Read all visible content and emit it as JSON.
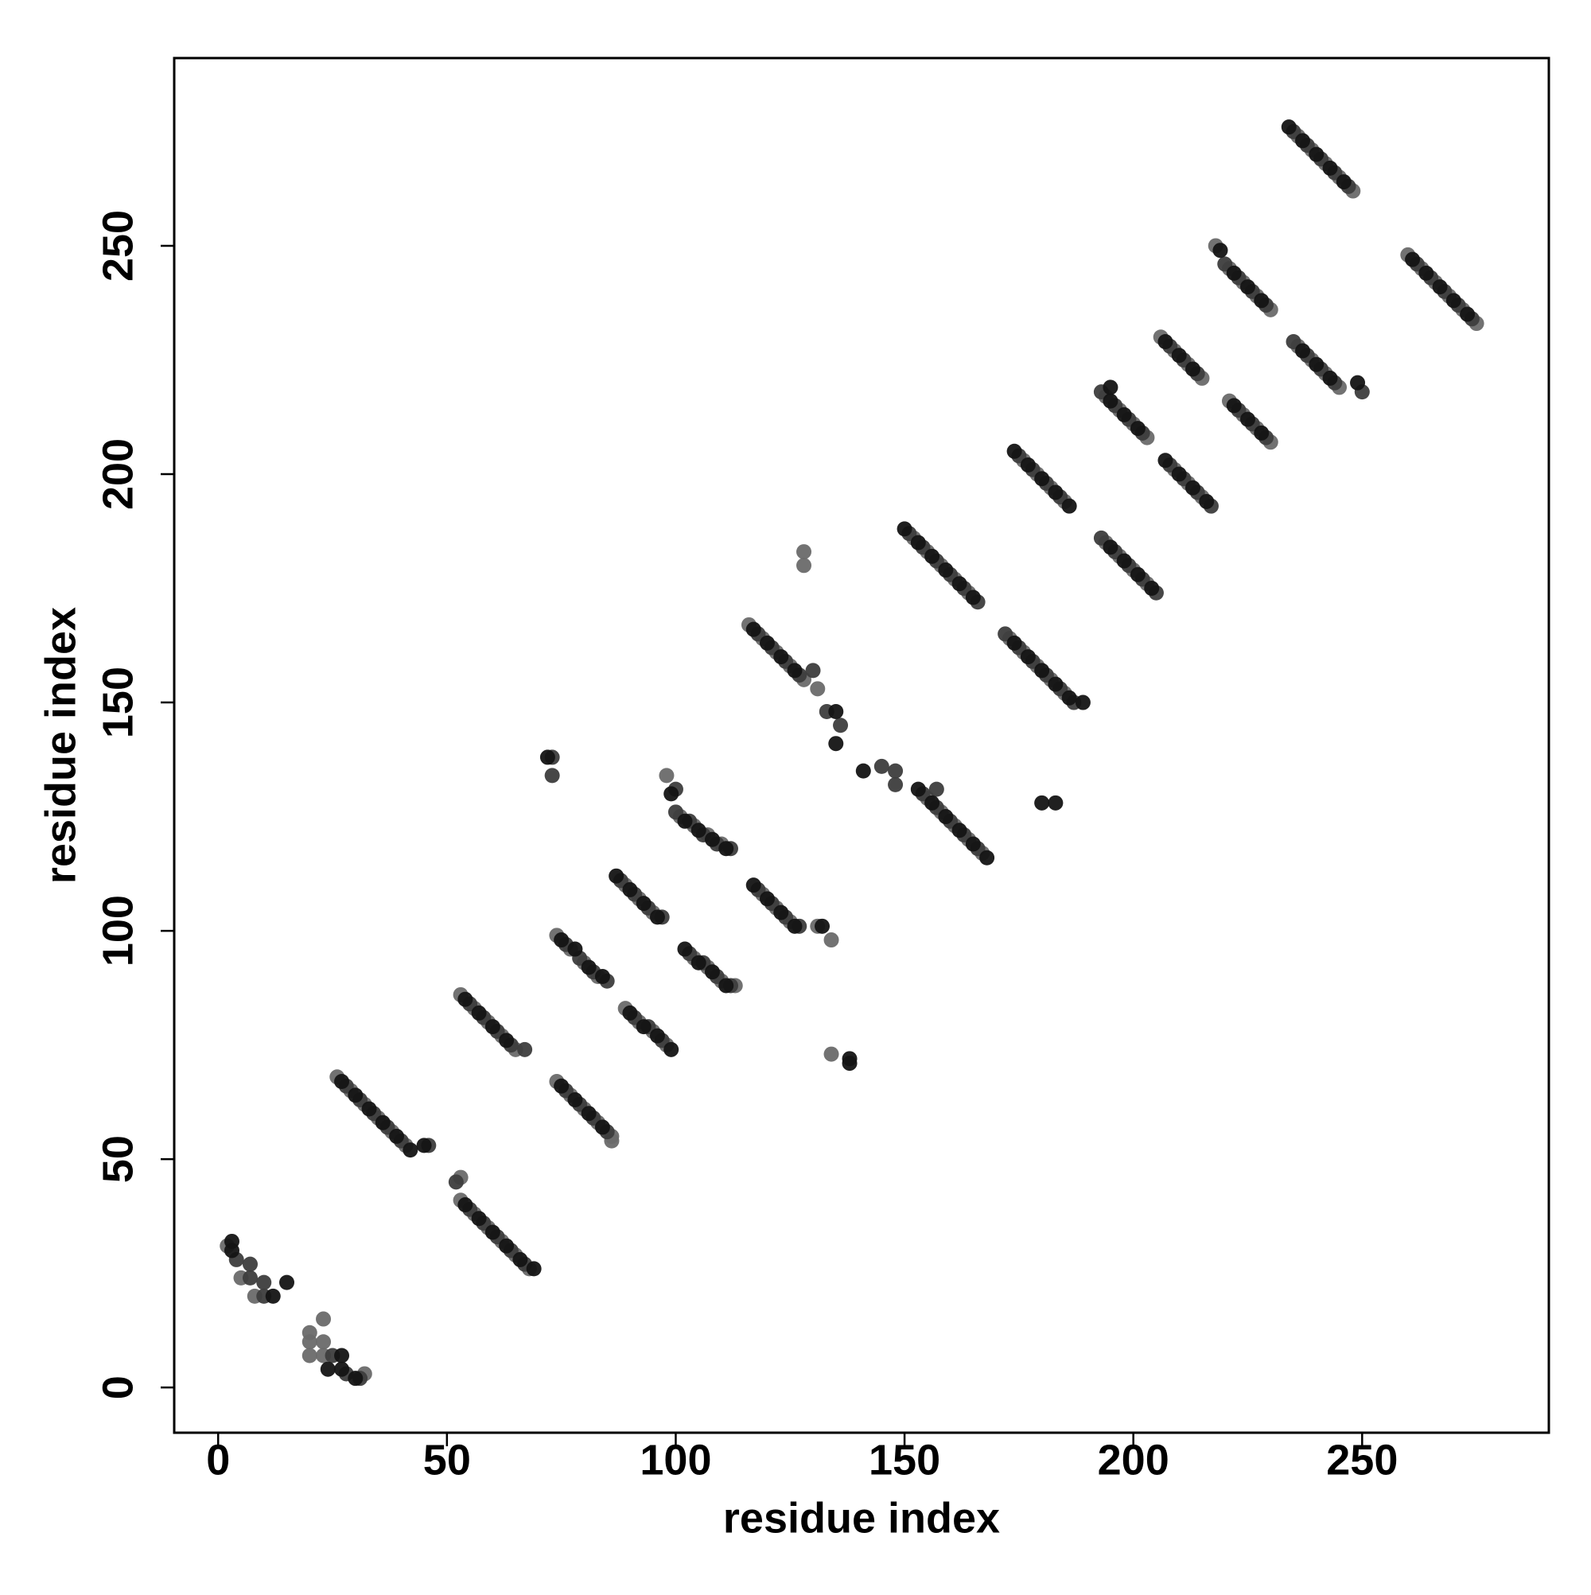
{
  "chart_data": {
    "type": "scatter",
    "x_label": "residue index",
    "y_label": "residue index",
    "xlim": [
      -9.6,
      290.8
    ],
    "ylim": [
      -9.9,
      291.1
    ],
    "xticks": [
      0,
      50,
      100,
      150,
      200,
      250
    ],
    "yticks": [
      0,
      50,
      100,
      150,
      200,
      250
    ],
    "grid": false,
    "series": [
      {
        "color": "#6a6a6a",
        "x": [
          2,
          5,
          8,
          20,
          20,
          20,
          23,
          23,
          23,
          32,
          26,
          29,
          32,
          35,
          38,
          41,
          53,
          53,
          56,
          59,
          62,
          65,
          68,
          53,
          56,
          59,
          62,
          65,
          74,
          77,
          80,
          83,
          74,
          77,
          80,
          83,
          86,
          86,
          89,
          92,
          95,
          98,
          89,
          92,
          95,
          98,
          101,
          104,
          107,
          110,
          104,
          107,
          110,
          113,
          116,
          119,
          122,
          125,
          128,
          128,
          128,
          131,
          119,
          122,
          125,
          131,
          134,
          134,
          152,
          155,
          158,
          161,
          164,
          155,
          158,
          161,
          164,
          167,
          173,
          176,
          179,
          182,
          185,
          176,
          179,
          182,
          185,
          194,
          197,
          200,
          203,
          194,
          197,
          200,
          203,
          206,
          209,
          212,
          215,
          209,
          212,
          215,
          218,
          221,
          224,
          227,
          230,
          221,
          224,
          227,
          230,
          236,
          239,
          242,
          245,
          236,
          239,
          242,
          245,
          248,
          260,
          263,
          266,
          269,
          272,
          275
        ],
        "values": [
          31,
          24,
          20,
          12,
          10,
          7,
          15,
          10,
          7,
          3,
          68,
          65,
          62,
          59,
          56,
          53,
          46,
          41,
          38,
          35,
          32,
          29,
          26,
          86,
          83,
          80,
          77,
          74,
          99,
          96,
          93,
          90,
          67,
          64,
          61,
          58,
          55,
          54,
          110,
          107,
          104,
          134,
          83,
          80,
          78,
          75,
          125,
          123,
          121,
          119,
          94,
          92,
          89,
          88,
          167,
          164,
          161,
          158,
          155,
          183,
          180,
          153,
          108,
          105,
          102,
          101,
          98,
          73,
          186,
          183,
          180,
          177,
          174,
          129,
          126,
          123,
          120,
          117,
          164,
          161,
          158,
          155,
          152,
          203,
          200,
          197,
          194,
          185,
          182,
          179,
          176,
          217,
          214,
          211,
          208,
          230,
          227,
          224,
          221,
          201,
          198,
          195,
          250,
          245,
          242,
          239,
          236,
          216,
          213,
          210,
          207,
          228,
          225,
          222,
          219,
          274,
          271,
          268,
          265,
          262,
          248,
          245,
          242,
          239,
          236,
          233
        ]
      },
      {
        "color": "#3d3d3d",
        "x": [
          4,
          7,
          7,
          10,
          10,
          25,
          28,
          31,
          28,
          31,
          34,
          37,
          40,
          46,
          52,
          55,
          58,
          61,
          64,
          67,
          55,
          58,
          61,
          64,
          67,
          73,
          73,
          76,
          79,
          82,
          85,
          76,
          79,
          82,
          85,
          88,
          91,
          94,
          97,
          100,
          91,
          94,
          97,
          100,
          103,
          106,
          109,
          112,
          103,
          106,
          109,
          112,
          118,
          121,
          124,
          127,
          130,
          118,
          121,
          124,
          127,
          133,
          136,
          145,
          148,
          148,
          151,
          154,
          157,
          160,
          163,
          166,
          154,
          157,
          160,
          163,
          166,
          157,
          172,
          175,
          178,
          181,
          184,
          187,
          175,
          178,
          181,
          184,
          193,
          196,
          199,
          202,
          205,
          193,
          196,
          199,
          202,
          208,
          211,
          214,
          208,
          211,
          214,
          217,
          220,
          223,
          226,
          229,
          223,
          226,
          229,
          235,
          238,
          241,
          244,
          250,
          235,
          238,
          241,
          244,
          247,
          262,
          265,
          268,
          271,
          274
        ],
        "values": [
          28,
          27,
          24,
          23,
          20,
          7,
          3,
          2,
          66,
          63,
          60,
          57,
          54,
          53,
          45,
          39,
          36,
          33,
          30,
          27,
          84,
          81,
          78,
          75,
          74,
          138,
          134,
          97,
          94,
          91,
          89,
          65,
          62,
          59,
          56,
          111,
          108,
          105,
          103,
          131,
          81,
          79,
          76,
          126,
          124,
          121,
          119,
          118,
          95,
          93,
          90,
          88,
          165,
          162,
          159,
          156,
          157,
          109,
          106,
          103,
          101,
          148,
          145,
          136,
          135,
          132,
          187,
          184,
          181,
          178,
          175,
          172,
          130,
          127,
          124,
          121,
          118,
          131,
          165,
          162,
          159,
          156,
          153,
          150,
          204,
          201,
          198,
          195,
          186,
          183,
          180,
          177,
          174,
          218,
          215,
          212,
          209,
          228,
          225,
          222,
          202,
          199,
          196,
          193,
          246,
          243,
          240,
          237,
          214,
          211,
          208,
          229,
          226,
          223,
          220,
          218,
          275,
          272,
          269,
          266,
          263,
          246,
          243,
          240,
          237,
          234
        ]
      },
      {
        "color": "#141414",
        "x": [
          3,
          3,
          12,
          15,
          24,
          27,
          27,
          30,
          27,
          30,
          33,
          36,
          39,
          42,
          45,
          54,
          57,
          60,
          63,
          66,
          69,
          54,
          57,
          60,
          63,
          72,
          75,
          78,
          81,
          84,
          75,
          78,
          81,
          84,
          87,
          90,
          93,
          96,
          99,
          90,
          93,
          96,
          99,
          102,
          105,
          108,
          111,
          102,
          105,
          108,
          111,
          117,
          120,
          123,
          126,
          117,
          120,
          123,
          126,
          132,
          135,
          135,
          138,
          138,
          141,
          150,
          153,
          156,
          159,
          162,
          165,
          153,
          156,
          159,
          162,
          165,
          168,
          174,
          177,
          180,
          183,
          186,
          189,
          174,
          177,
          180,
          183,
          186,
          180,
          183,
          195,
          198,
          201,
          204,
          195,
          198,
          201,
          195,
          207,
          210,
          213,
          207,
          210,
          213,
          216,
          219,
          222,
          225,
          228,
          222,
          225,
          228,
          237,
          240,
          243,
          249,
          234,
          237,
          240,
          243,
          246,
          261,
          264,
          267,
          270,
          273
        ],
        "values": [
          32,
          30,
          20,
          23,
          4,
          7,
          4,
          2,
          67,
          64,
          61,
          58,
          55,
          52,
          53,
          40,
          37,
          34,
          31,
          28,
          26,
          85,
          82,
          79,
          76,
          138,
          98,
          96,
          92,
          90,
          66,
          63,
          60,
          57,
          112,
          109,
          106,
          103,
          130,
          82,
          79,
          77,
          74,
          124,
          122,
          120,
          118,
          96,
          93,
          91,
          88,
          166,
          163,
          160,
          157,
          110,
          107,
          104,
          101,
          101,
          148,
          141,
          72,
          71,
          135,
          188,
          185,
          182,
          179,
          176,
          173,
          131,
          128,
          125,
          122,
          119,
          116,
          163,
          160,
          157,
          154,
          151,
          150,
          205,
          202,
          199,
          196,
          193,
          128,
          128,
          184,
          181,
          178,
          175,
          216,
          213,
          210,
          219,
          229,
          226,
          223,
          203,
          200,
          197,
          194,
          249,
          244,
          241,
          238,
          215,
          212,
          209,
          227,
          224,
          221,
          220,
          276,
          273,
          270,
          267,
          264,
          247,
          244,
          241,
          238,
          235
        ]
      }
    ]
  }
}
